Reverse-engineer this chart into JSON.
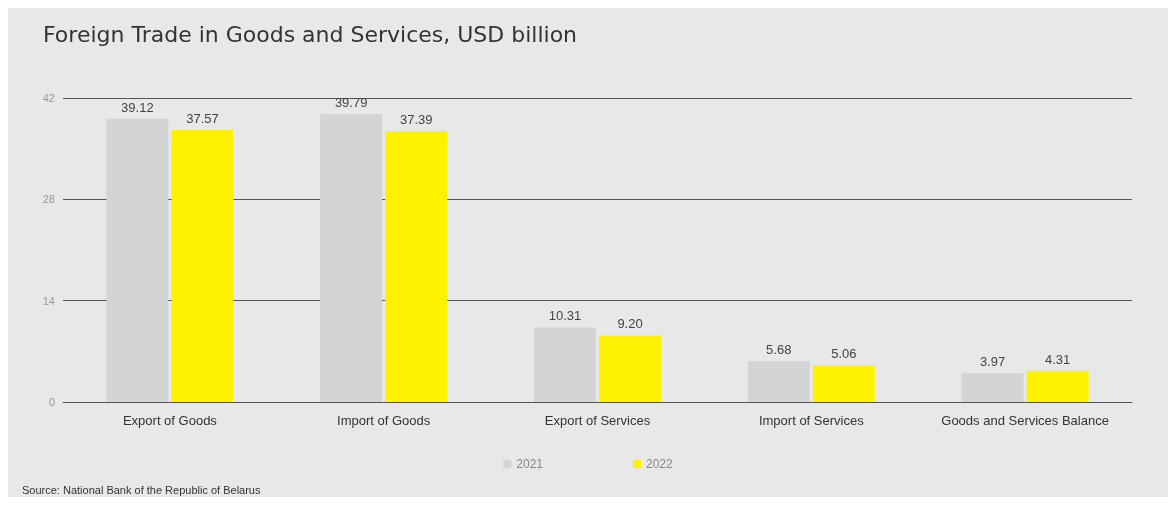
{
  "chart_data": {
    "type": "bar",
    "title": "Foreign Trade in Goods and Services, USD billion",
    "categories": [
      "Export of Goods",
      "Import of Goods",
      "Export of Services",
      "Import of Services",
      "Goods and Services Balance"
    ],
    "series": [
      {
        "name": "2021",
        "color": "#d4d4d4",
        "values": [
          39.12,
          39.79,
          10.31,
          5.68,
          3.97
        ],
        "value_labels": [
          "39.12",
          "39.79",
          "10.31",
          "5.68",
          "3.97"
        ]
      },
      {
        "name": "2022",
        "color": "#fff200",
        "values": [
          37.57,
          37.39,
          9.2,
          5.06,
          4.31
        ],
        "value_labels": [
          "37.57",
          "37.39",
          "9.20",
          "5.06",
          "4.31"
        ]
      }
    ],
    "ylim": [
      0,
      42
    ],
    "yticks": [
      0,
      14,
      28,
      42
    ],
    "grid": "y",
    "legend": "bottom",
    "annotations": [
      "Source: National Bank of the Republic of Belarus"
    ]
  }
}
